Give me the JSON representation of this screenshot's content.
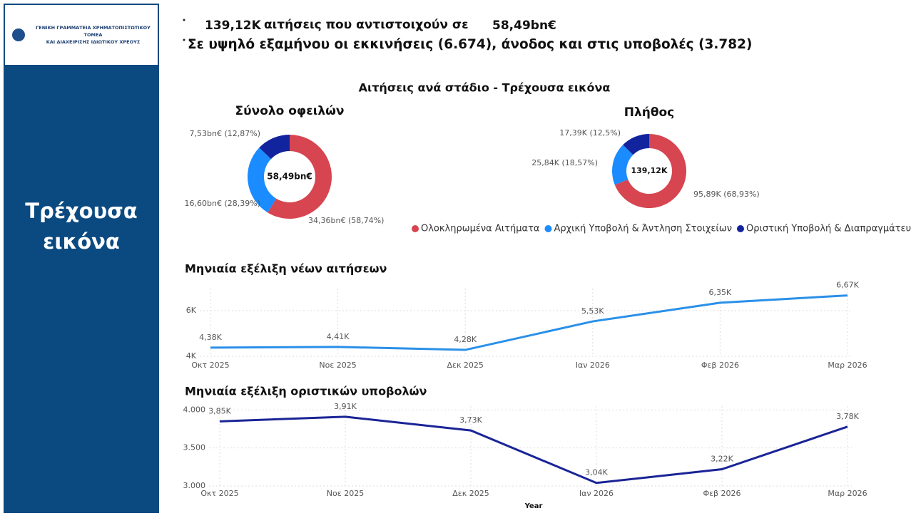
{
  "sidebar": {
    "logo_lines": [
      "ΓΕΝΙΚΗ ΓΡΑΜΜΑΤΕΙΑ ΧΡΗΜΑΤΟΠΙΣΤΩΤΙΚΟΥ ΤΟΜΕΑ",
      "ΚΑΙ ΔΙΑΧΕΙΡΙΣΗΣ ΙΔΙΩΤΙΚΟΥ ΧΡΕΟΥΣ"
    ],
    "title": "Τρέχουσα εικόνα"
  },
  "header": {
    "count": "139,12K",
    "connector": "αιτήσεις που αντιστοιχούν σε",
    "amount": "58,49bn€",
    "headline": "Σε υψηλό εξαμήνου οι εκκινήσεις (6.674), άνοδος και στις υποβολές (3.782)"
  },
  "section_title": "Αιτήσεις ανά στάδιο - Τρέχουσα εικόνα",
  "chart_data": [
    {
      "type": "donut",
      "title": "Σύνολο οφειλών",
      "center_label": "58,49bn€",
      "values": [
        34.36,
        16.6,
        7.53
      ],
      "value_labels": [
        "34,36bn€ (58,74%)",
        "16,60bn€ (28,39%)",
        "7,53bn€ (12,87%)"
      ],
      "colors": [
        "#d64550",
        "#1a8cff",
        "#12239e"
      ]
    },
    {
      "type": "donut",
      "title": "Πλήθος",
      "center_label": "139,12K",
      "categories": [
        "Ολοκληρωμένα Αιτήματα",
        "Αρχική Υποβολή & Άντληση Στοιχείων",
        "Οριστική Υποβολή & Διαπραγμάτευση"
      ],
      "values": [
        95.89,
        25.84,
        17.39
      ],
      "value_labels": [
        "95,89K (68,93%)",
        "25,84K (18,57%)",
        "17,39K (12,5%)"
      ],
      "colors": [
        "#d64550",
        "#1a8cff",
        "#12239e"
      ]
    },
    {
      "type": "line",
      "title": "Μηνιαία εξέλιξη νέων αιτήσεων",
      "categories": [
        "Οκτ 2025",
        "Νοε 2025",
        "Δεκ 2025",
        "Ιαν 2026",
        "Φεβ 2026",
        "Μαρ 2026"
      ],
      "values": [
        4.38,
        4.41,
        4.28,
        5.53,
        6.35,
        6.67
      ],
      "value_labels": [
        "4,38K",
        "4,41K",
        "4,28K",
        "5,53K",
        "6,35K",
        "6,67K"
      ],
      "color": "#2a90e8",
      "ylim": [
        4,
        6.97
      ],
      "yticks": [
        {
          "value": 4,
          "label": "4K"
        },
        {
          "value": 6,
          "label": "6K"
        }
      ],
      "grid": true
    },
    {
      "type": "line",
      "title": "Μηνιαία εξέλιξη οριστικών υποβολών",
      "x_label": "Year",
      "categories": [
        "Οκτ 2025",
        "Νοε 2025",
        "Δεκ 2025",
        "Ιαν 2026",
        "Φεβ 2026",
        "Μαρ 2026"
      ],
      "values": [
        3850,
        3910,
        3730,
        3040,
        3220,
        3780
      ],
      "value_labels": [
        "3,85K",
        "3,91K",
        "3,73K",
        "3,04K",
        "3,22K",
        "3,78K"
      ],
      "color": "#1a2496",
      "ylim": [
        3000,
        4050
      ],
      "yticks": [
        {
          "value": 3000,
          "label": "3.000"
        },
        {
          "value": 3500,
          "label": "3.500"
        },
        {
          "value": 4000,
          "label": "4.000"
        }
      ],
      "grid": true
    }
  ]
}
